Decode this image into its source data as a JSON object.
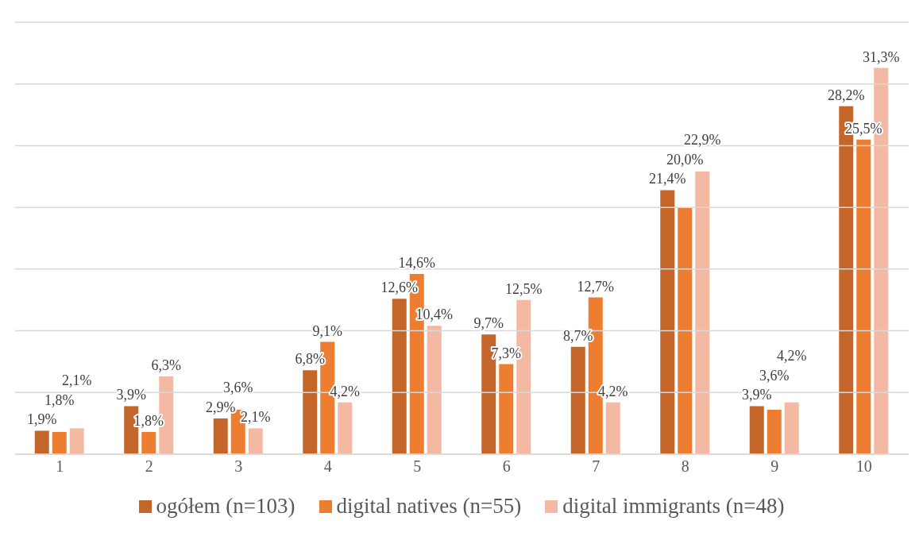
{
  "chart_data": {
    "type": "bar",
    "categories": [
      "1",
      "2",
      "3",
      "4",
      "5",
      "6",
      "7",
      "8",
      "9",
      "10"
    ],
    "series": [
      {
        "name": "ogółem (n=103)",
        "color": "#c4652a",
        "values": [
          1.9,
          3.9,
          2.9,
          6.8,
          12.6,
          9.7,
          8.7,
          21.4,
          3.9,
          28.2
        ],
        "value_labels": [
          "1,9%",
          "3,9%",
          "2,9%",
          "6,8%",
          "12,6%",
          "9,7%",
          "8,7%",
          "21,4%",
          "3,9%",
          "28,2%"
        ]
      },
      {
        "name": "digital natives (n=55)",
        "color": "#ed7d31",
        "values": [
          1.8,
          1.8,
          3.6,
          9.1,
          14.6,
          7.3,
          12.7,
          20.0,
          3.6,
          25.5
        ],
        "value_labels": [
          "1,8%",
          "1,8%",
          "3,6%",
          "9,1%",
          "14,6%",
          "7,3%",
          "12,7%",
          "20,0%",
          "3,6%",
          "25,5%"
        ]
      },
      {
        "name": "digital immigrants (n=48)",
        "color": "#f4b9a3",
        "values": [
          2.1,
          6.3,
          2.1,
          4.2,
          10.4,
          12.5,
          4.2,
          22.9,
          4.2,
          31.3
        ],
        "value_labels": [
          "2,1%",
          "6,3%",
          "2,1%",
          "4,2%",
          "10,4%",
          "12,5%",
          "4,2%",
          "22,9%",
          "4,2%",
          "31,3%"
        ]
      }
    ],
    "ylim": [
      0,
      35
    ],
    "yticks": [
      0,
      5,
      10,
      15,
      20,
      25,
      30,
      35
    ],
    "tick_labels": "x",
    "grid": "y",
    "legend": "bottom"
  }
}
